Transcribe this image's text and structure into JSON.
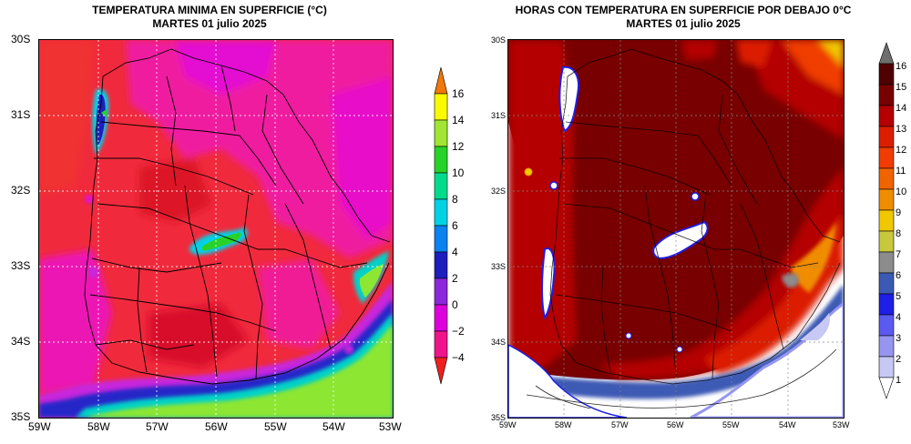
{
  "left_map": {
    "title_line1": "TEMPERATURA MINIMA EN SUPERFICIE (°C)",
    "title_line2": "MARTES 01 julio 2025",
    "y_ticks": [
      "30S",
      "31S",
      "32S",
      "33S",
      "34S",
      "35S"
    ],
    "x_ticks": [
      "59W",
      "58W",
      "57W",
      "56W",
      "55W",
      "54W",
      "53W"
    ],
    "colorbar": {
      "labels": [
        "16",
        "14",
        "12",
        "10",
        "8",
        "6",
        "4",
        "2",
        "0",
        "−2",
        "−4"
      ],
      "colors": [
        "#f0780a",
        "#fafa00",
        "#a0e632",
        "#28d228",
        "#00dc8c",
        "#00d2e6",
        "#0a82f0",
        "#1e1ebe",
        "#8c28dc",
        "#dc00dc",
        "#f0148c",
        "#f01e1e"
      ]
    }
  },
  "right_map": {
    "title_line1": "HORAS CON TEMPERATURA EN SUPERFICIE POR DEBAJO 0°C",
    "title_line2": "MARTES 01 julio 2025",
    "y_ticks": [
      "30S",
      "31S",
      "32S",
      "33S",
      "34S",
      "35S"
    ],
    "x_ticks": [
      "59W",
      "58W",
      "57W",
      "56W",
      "55W",
      "54W",
      "53W"
    ],
    "colorbar": {
      "labels": [
        "16",
        "15",
        "14",
        "13",
        "12",
        "11",
        "10",
        "9",
        "8",
        "7",
        "6",
        "5",
        "4",
        "3",
        "2",
        "1"
      ],
      "colors": [
        "#6e6e6e",
        "#500000",
        "#780000",
        "#b40000",
        "#dc1e00",
        "#f03c00",
        "#f06400",
        "#f08c00",
        "#f0c800",
        "#c8c83c",
        "#8c8c8c",
        "#3c5ab4",
        "#1e1ee6",
        "#5a5af0",
        "#9696f0",
        "#c8c8f5",
        "#ffffff"
      ]
    }
  }
}
